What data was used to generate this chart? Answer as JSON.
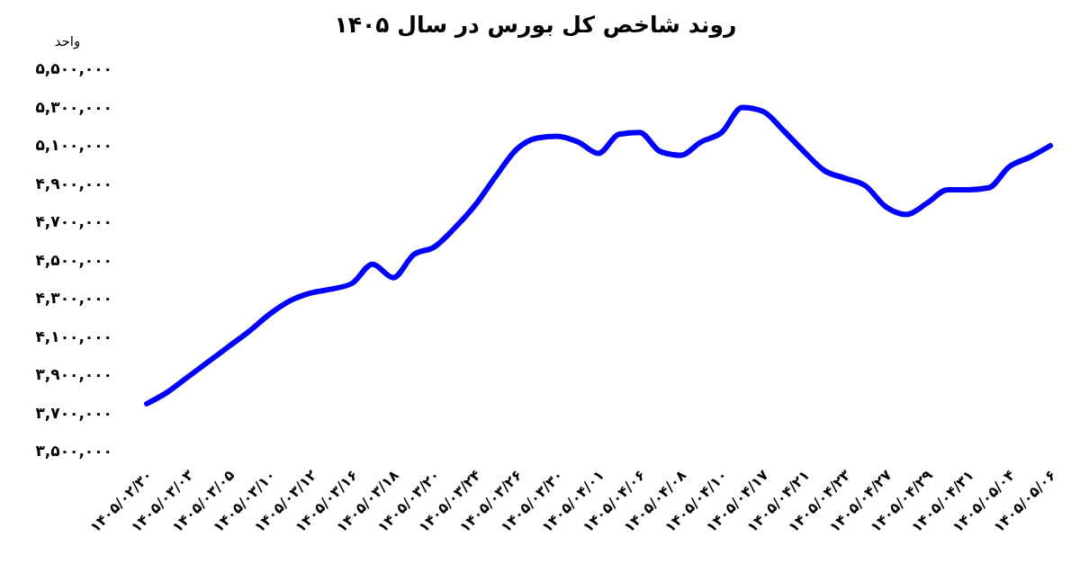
{
  "chart_data": {
    "type": "line",
    "title": "روند شاخص کل بورس در سال ۱۴۰۵",
    "ylabel": "واحد",
    "categories": [
      "۱۴۰۵/۰۲/۳۰",
      null,
      "۱۴۰۵/۰۳/۰۳",
      null,
      "۱۴۰۵/۰۳/۰۵",
      null,
      "۱۴۰۵/۰۳/۱۰",
      null,
      "۱۴۰۵/۰۳/۱۲",
      null,
      "۱۴۰۵/۰۳/۱۶",
      null,
      "۱۴۰۵/۰۳/۱۸",
      null,
      "۱۴۰۵/۰۳/۲۰",
      null,
      "۱۴۰۵/۰۳/۲۴",
      null,
      "۱۴۰۵/۰۳/۲۶",
      null,
      "۱۴۰۵/۰۳/۳۰",
      null,
      "۱۴۰۵/۰۴/۰۱",
      null,
      "۱۴۰۵/۰۴/۰۶",
      null,
      "۱۴۰۵/۰۴/۰۸",
      null,
      "۱۴۰۵/۰۴/۱۰",
      null,
      "۱۴۰۵/۰۴/۱۷",
      null,
      "۱۴۰۵/۰۴/۲۱",
      null,
      "۱۴۰۵/۰۴/۲۳",
      null,
      "۱۴۰۵/۰۴/۲۷",
      null,
      "۱۴۰۵/۰۴/۲۹",
      null,
      "۱۴۰۵/۰۴/۳۱",
      null,
      "۱۴۰۵/۰۵/۰۴",
      null,
      "۱۴۰۵/۰۵/۰۶"
    ],
    "series": [
      {
        "color": "#0000ff",
        "values": [
          3750000,
          3810000,
          3890000,
          3970000,
          4050000,
          4130000,
          4220000,
          4290000,
          4330000,
          4350000,
          4380000,
          4480000,
          4410000,
          4530000,
          4570000,
          4670000,
          4790000,
          4940000,
          5080000,
          5140000,
          5150000,
          5120000,
          5060000,
          5160000,
          5170000,
          5070000,
          5050000,
          5120000,
          5170000,
          5300000,
          5280000,
          5180000,
          5070000,
          4970000,
          4930000,
          4890000,
          4780000,
          4740000,
          4800000,
          4870000,
          4870000,
          4880000,
          4990000,
          5040000,
          5100000
        ]
      }
    ],
    "ylim": [
      3500000,
      5500000
    ],
    "yticks": [
      {
        "value": 3500000,
        "label": "۳,۵۰۰,۰۰۰"
      },
      {
        "value": 3700000,
        "label": "۳,۷۰۰,۰۰۰"
      },
      {
        "value": 3900000,
        "label": "۳,۹۰۰,۰۰۰"
      },
      {
        "value": 4100000,
        "label": "۴,۱۰۰,۰۰۰"
      },
      {
        "value": 4300000,
        "label": "۴,۳۰۰,۰۰۰"
      },
      {
        "value": 4500000,
        "label": "۴,۵۰۰,۰۰۰"
      },
      {
        "value": 4700000,
        "label": "۴,۷۰۰,۰۰۰"
      },
      {
        "value": 4900000,
        "label": "۴,۹۰۰,۰۰۰"
      },
      {
        "value": 5100000,
        "label": "۵,۱۰۰,۰۰۰"
      },
      {
        "value": 5300000,
        "label": "۵,۳۰۰,۰۰۰"
      },
      {
        "value": 5500000,
        "label": "۵,۵۰۰,۰۰۰"
      }
    ],
    "line_style": "solid"
  }
}
